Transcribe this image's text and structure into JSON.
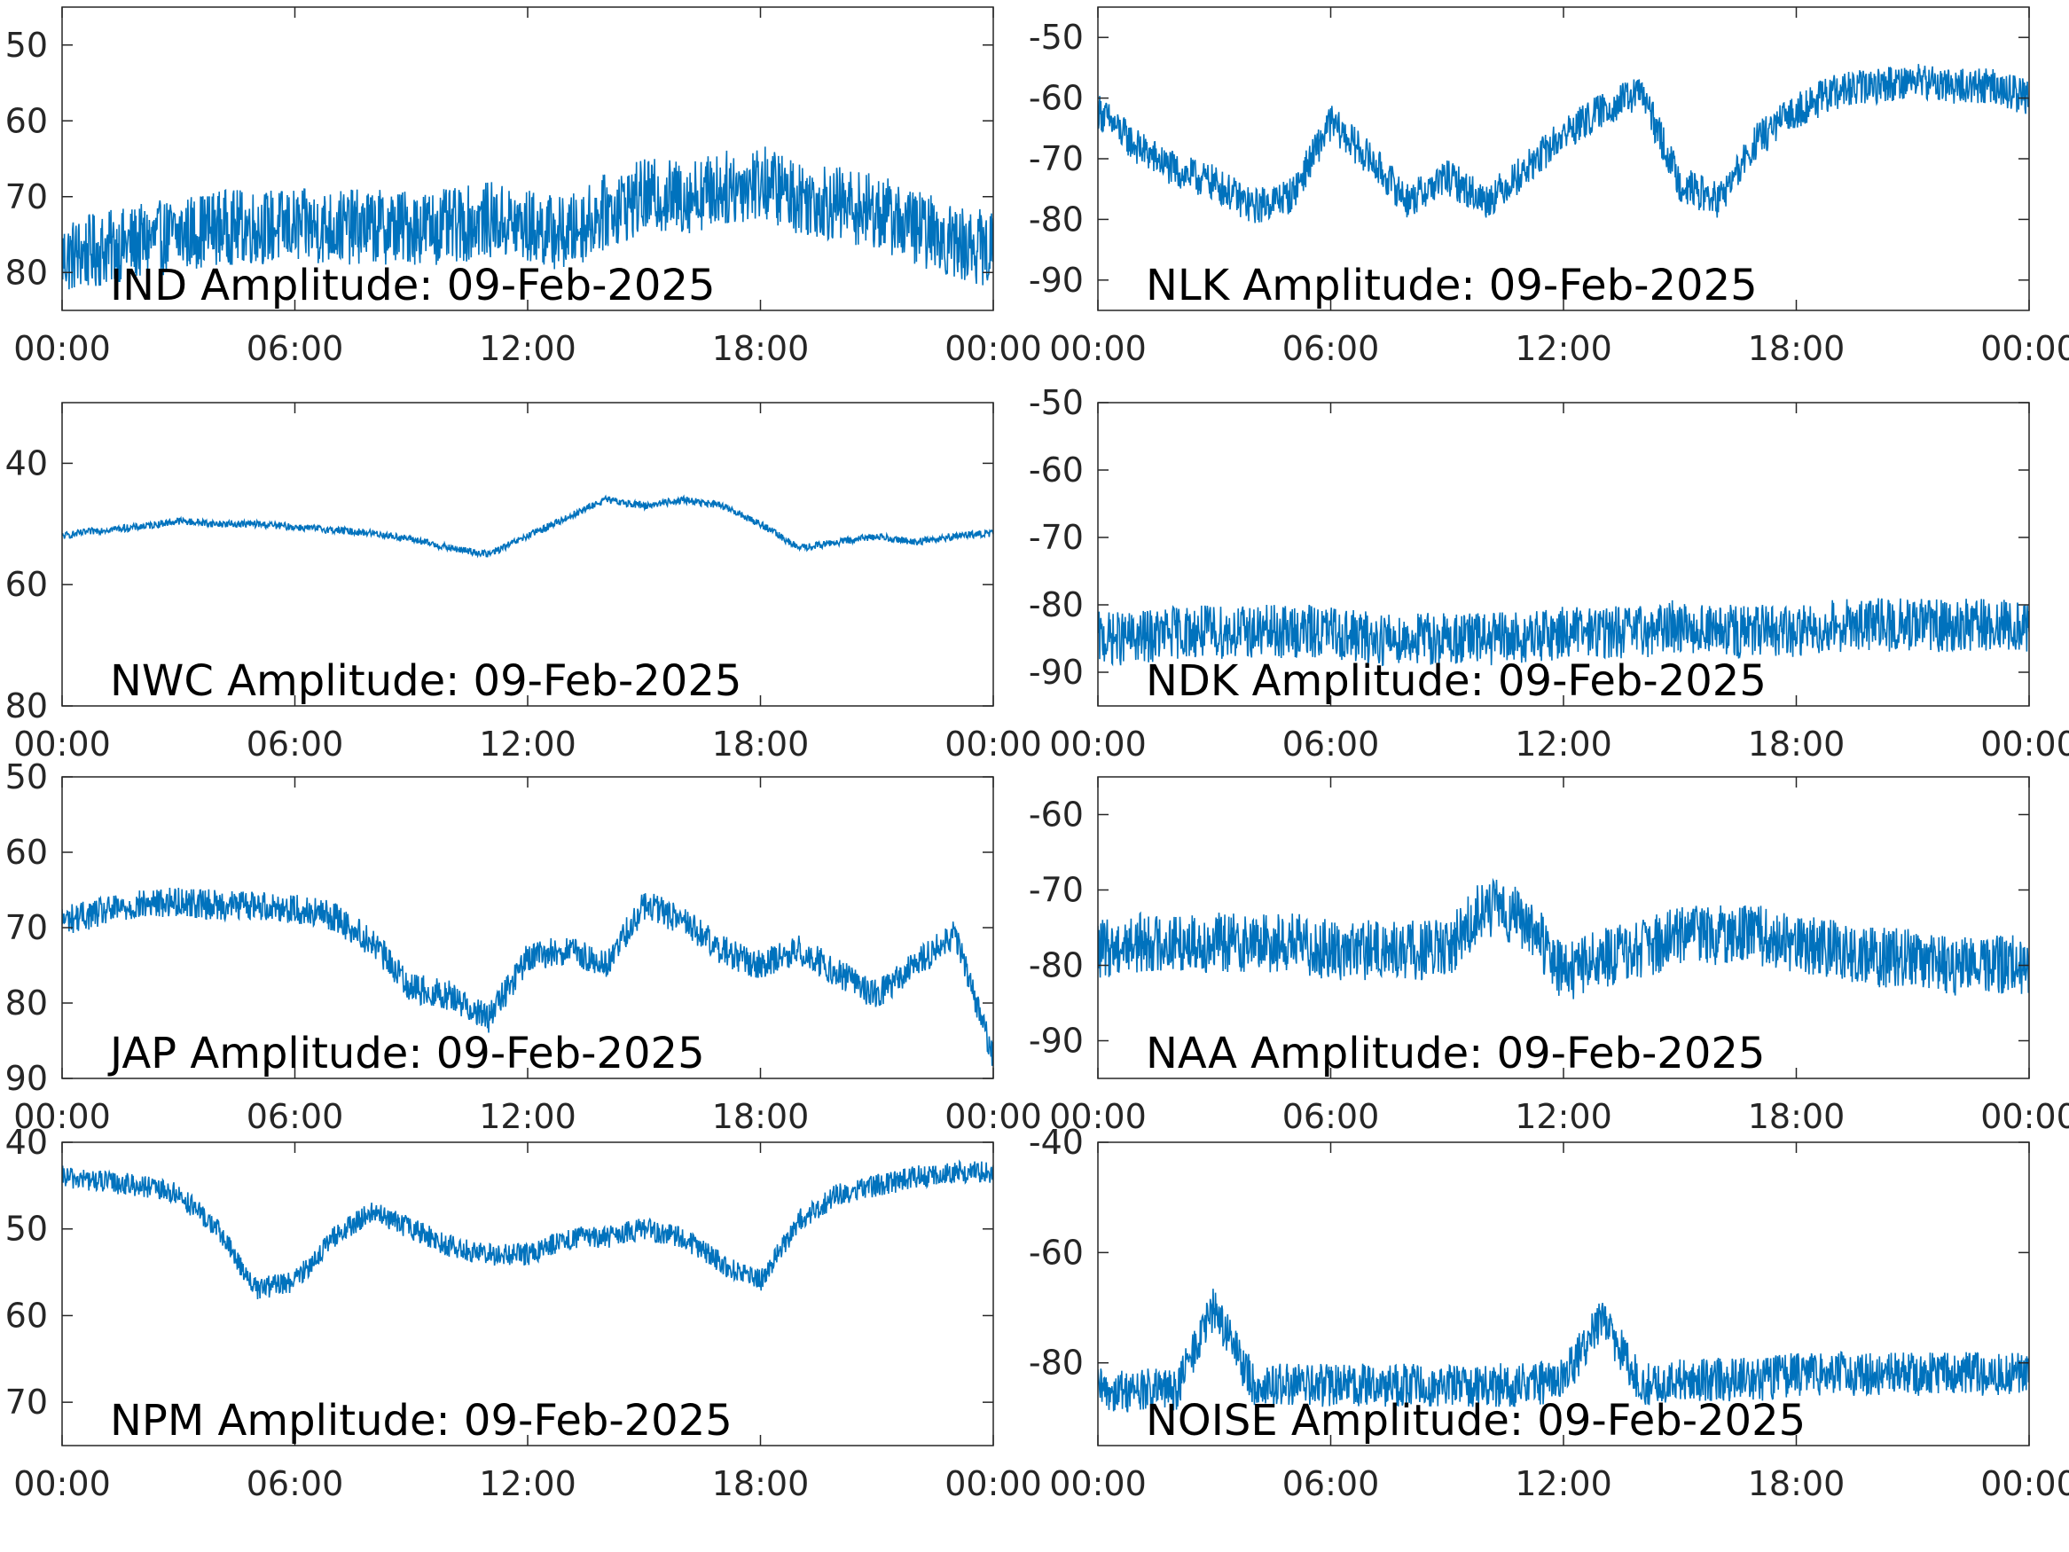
{
  "figure": {
    "line_color": "#0072BD",
    "axes_color": "#262626",
    "background": "#ffffff"
  },
  "chart_data": [
    {
      "type": "line",
      "title": "IND Amplitude: 09-Feb-2025",
      "x_ticks": [
        "00:00",
        "06:00",
        "12:00",
        "18:00",
        "00:00"
      ],
      "y_ticks": [
        "50",
        "60",
        "70",
        "80"
      ],
      "ylim": [
        -85,
        -45
      ],
      "y_tick_values": [
        -50,
        -60,
        -70,
        -80
      ],
      "x_hours": [
        0,
        1,
        2,
        3,
        4,
        5,
        6,
        7,
        8,
        9,
        10,
        11,
        12,
        13,
        14,
        15,
        16,
        17,
        18,
        19,
        20,
        21,
        22,
        23,
        24
      ],
      "y_center": [
        -78,
        -77,
        -76,
        -75,
        -74,
        -74,
        -74,
        -74,
        -74,
        -74,
        -74,
        -73,
        -74,
        -75,
        -72,
        -70,
        -70,
        -69,
        -68,
        -70,
        -71,
        -72,
        -74,
        -76,
        -77
      ],
      "noise": 5,
      "grid": false
    },
    {
      "type": "line",
      "title": "NLK Amplitude: 09-Feb-2025",
      "x_ticks": [
        "00:00",
        "06:00",
        "12:00",
        "18:00",
        "00:00"
      ],
      "y_ticks": [
        "-50",
        "-60",
        "-70",
        "-80",
        "-90"
      ],
      "ylim": [
        -95,
        -45
      ],
      "y_tick_values": [
        -50,
        -60,
        -70,
        -80,
        -90
      ],
      "x_hours": [
        0,
        1,
        2,
        3,
        4,
        5,
        6,
        7,
        8,
        9,
        10,
        11,
        12,
        13,
        14,
        15,
        16,
        17,
        18,
        19,
        20,
        21,
        22,
        23,
        24
      ],
      "y_center": [
        -62,
        -68,
        -72,
        -74,
        -78,
        -76,
        -64,
        -70,
        -77,
        -73,
        -77,
        -72,
        -66,
        -62,
        -59,
        -74,
        -77,
        -67,
        -62,
        -59,
        -58,
        -57,
        -58,
        -58,
        -60
      ],
      "noise": 3,
      "grid": false
    },
    {
      "type": "line",
      "title": "NWC Amplitude: 09-Feb-2025",
      "x_ticks": [
        "00:00",
        "06:00",
        "12:00",
        "18:00",
        "00:00"
      ],
      "y_ticks": [
        "40",
        "60",
        "80"
      ],
      "ylim": [
        -80,
        -30
      ],
      "y_tick_values": [
        -40,
        -60,
        -80
      ],
      "x_hours": [
        0,
        1,
        2,
        3,
        4,
        5,
        6,
        7,
        8,
        9,
        10,
        11,
        12,
        13,
        14,
        15,
        16,
        17,
        18,
        19,
        20,
        21,
        22,
        23,
        24
      ],
      "y_center": [
        -52,
        -51,
        -50.5,
        -49.5,
        -50,
        -50,
        -50.5,
        -51,
        -51.5,
        -52.5,
        -54,
        -55,
        -52,
        -49,
        -46,
        -47,
        -46,
        -47,
        -50,
        -54,
        -53,
        -52,
        -53,
        -52,
        -51.5
      ],
      "noise": 0.6,
      "grid": false
    },
    {
      "type": "line",
      "title": "NDK Amplitude: 09-Feb-2025",
      "x_ticks": [
        "00:00",
        "06:00",
        "12:00",
        "18:00",
        "00:00"
      ],
      "y_ticks": [
        "-50",
        "-60",
        "-70",
        "-80",
        "-90"
      ],
      "ylim": [
        -95,
        -50
      ],
      "y_tick_values": [
        -50,
        -60,
        -70,
        -80,
        -90
      ],
      "x_hours": [
        0,
        1,
        2,
        3,
        4,
        5,
        6,
        7,
        8,
        9,
        10,
        11,
        12,
        13,
        14,
        15,
        16,
        17,
        18,
        19,
        20,
        21,
        22,
        23,
        24
      ],
      "y_center": [
        -85,
        -85,
        -84,
        -84,
        -84,
        -84,
        -84,
        -85,
        -85,
        -85,
        -85,
        -85,
        -84,
        -84,
        -84,
        -83,
        -84,
        -84,
        -84,
        -83,
        -83,
        -83,
        -83,
        -83,
        -83
      ],
      "noise": 4,
      "grid": false
    },
    {
      "type": "line",
      "title": "JAP Amplitude: 09-Feb-2025",
      "x_ticks": [
        "00:00",
        "06:00",
        "12:00",
        "18:00",
        "00:00"
      ],
      "y_ticks": [
        "50",
        "60",
        "70",
        "80",
        "90"
      ],
      "ylim": [
        -90,
        -50
      ],
      "y_tick_values": [
        -50,
        -60,
        -70,
        -80,
        -90
      ],
      "x_hours": [
        0,
        1,
        2,
        3,
        4,
        5,
        6,
        7,
        8,
        9,
        10,
        11,
        12,
        13,
        14,
        15,
        16,
        17,
        18,
        19,
        20,
        21,
        22,
        23,
        24
      ],
      "y_center": [
        -69,
        -68,
        -67,
        -66.5,
        -67,
        -67,
        -67.5,
        -68.5,
        -72,
        -78,
        -79,
        -82,
        -74,
        -73,
        -75,
        -67,
        -69,
        -73,
        -75,
        -73,
        -76,
        -79,
        -75,
        -71,
        -87
      ],
      "noise": 2,
      "grid": false
    },
    {
      "type": "line",
      "title": "NAA Amplitude: 09-Feb-2025",
      "x_ticks": [
        "00:00",
        "06:00",
        "12:00",
        "18:00",
        "00:00"
      ],
      "y_ticks": [
        "-60",
        "-70",
        "-80",
        "-90"
      ],
      "ylim": [
        -95,
        -55
      ],
      "y_tick_values": [
        -60,
        -70,
        -80,
        -90
      ],
      "x_hours": [
        0,
        1,
        2,
        3,
        4,
        5,
        6,
        7,
        8,
        9,
        10,
        11,
        12,
        13,
        14,
        15,
        16,
        17,
        18,
        19,
        20,
        21,
        22,
        23,
        24
      ],
      "y_center": [
        -78,
        -77,
        -77,
        -77,
        -77,
        -77,
        -78,
        -78,
        -78,
        -78,
        -72,
        -74,
        -81,
        -79,
        -78,
        -76,
        -76,
        -76,
        -77,
        -78,
        -79,
        -79,
        -80,
        -80,
        -80
      ],
      "noise": 4,
      "grid": false
    },
    {
      "type": "line",
      "title": "NPM Amplitude: 09-Feb-2025",
      "x_ticks": [
        "00:00",
        "06:00",
        "12:00",
        "18:00",
        "00:00"
      ],
      "y_ticks": [
        "40",
        "50",
        "60",
        "70"
      ],
      "ylim": [
        -75,
        -40
      ],
      "y_tick_values": [
        -40,
        -50,
        -60,
        -70
      ],
      "x_hours": [
        0,
        1,
        2,
        3,
        4,
        5,
        6,
        7,
        8,
        9,
        10,
        11,
        12,
        13,
        14,
        15,
        16,
        17,
        18,
        19,
        20,
        21,
        22,
        23,
        24
      ],
      "y_center": [
        -44,
        -44.5,
        -45,
        -46,
        -50,
        -57,
        -56,
        -51,
        -48,
        -50,
        -52,
        -53,
        -53,
        -51,
        -51,
        -50,
        -51,
        -54,
        -56,
        -49,
        -46,
        -45,
        -44,
        -43.5,
        -43.5
      ],
      "noise": 1.3,
      "grid": false
    },
    {
      "type": "line",
      "title": "NOISE Amplitude: 09-Feb-2025",
      "x_ticks": [
        "00:00",
        "06:00",
        "12:00",
        "18:00",
        "00:00"
      ],
      "y_ticks": [
        "-40",
        "-60",
        "-80"
      ],
      "ylim": [
        -95,
        -40
      ],
      "y_tick_values": [
        -40,
        -60,
        -80
      ],
      "x_hours": [
        0,
        1,
        2,
        3,
        4,
        5,
        6,
        7,
        8,
        9,
        10,
        11,
        12,
        13,
        14,
        15,
        16,
        17,
        18,
        19,
        20,
        21,
        22,
        23,
        24
      ],
      "y_center": [
        -85,
        -85,
        -85,
        -70,
        -84,
        -84,
        -84,
        -84,
        -84,
        -84,
        -84,
        -84,
        -83,
        -72,
        -84,
        -83,
        -83,
        -83,
        -82,
        -82,
        -82,
        -82,
        -82,
        -82,
        -82
      ],
      "noise": 4,
      "grid": false
    }
  ]
}
